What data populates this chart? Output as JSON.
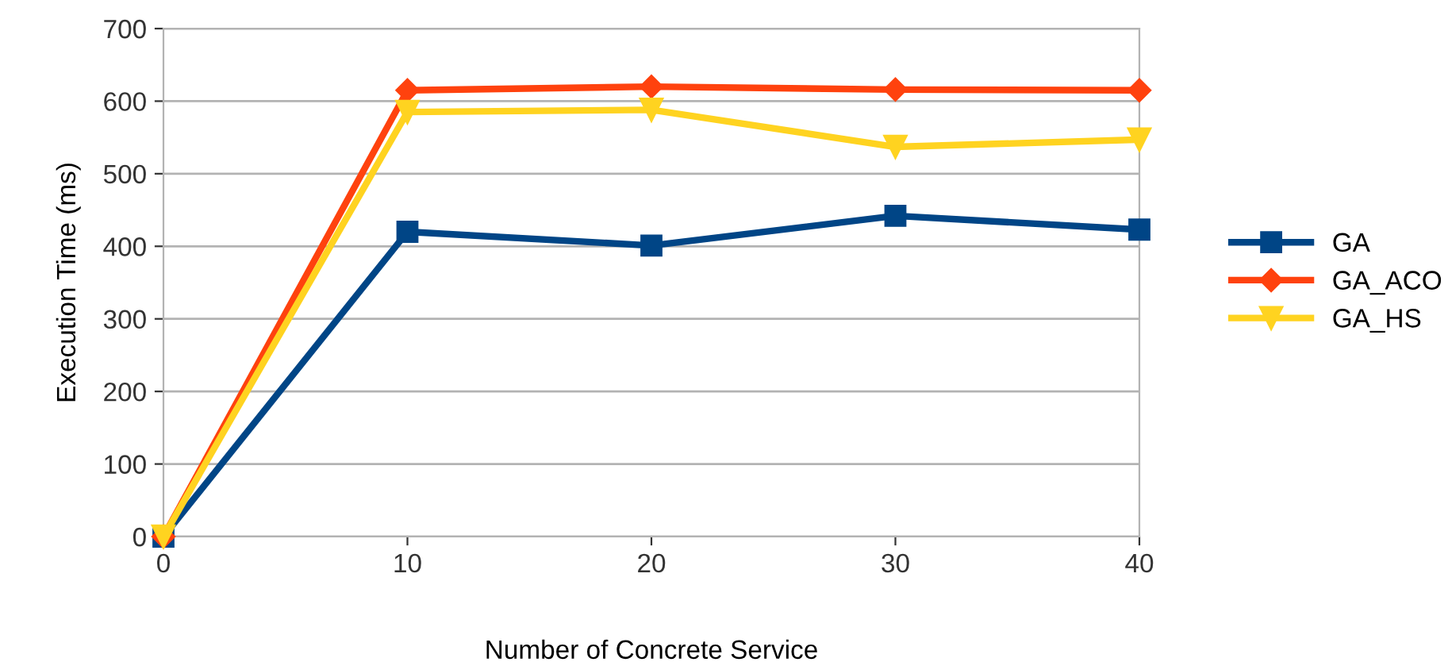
{
  "chart_data": {
    "type": "line",
    "xlabel": "Number of Concrete Service",
    "ylabel": "Execution Time (ms)",
    "x": [
      0,
      10,
      20,
      30,
      40
    ],
    "series": [
      {
        "name": "GA",
        "color": "#004586",
        "marker": "square",
        "values": [
          0,
          420,
          401,
          442,
          423
        ]
      },
      {
        "name": "GA_ACO",
        "color": "#ff420e",
        "marker": "diamond",
        "values": [
          0,
          615,
          620,
          616,
          615
        ]
      },
      {
        "name": "GA_HS",
        "color": "#ffd320",
        "marker": "triangle",
        "values": [
          0,
          585,
          588,
          537,
          547
        ]
      }
    ],
    "xlim": [
      0,
      40
    ],
    "xticks": [
      0,
      10,
      20,
      30,
      40
    ],
    "ylim": [
      0,
      700
    ],
    "yticks": [
      0,
      100,
      200,
      300,
      400,
      500,
      600,
      700
    ],
    "grid": "y",
    "legend": "right",
    "line_style": "solid"
  }
}
